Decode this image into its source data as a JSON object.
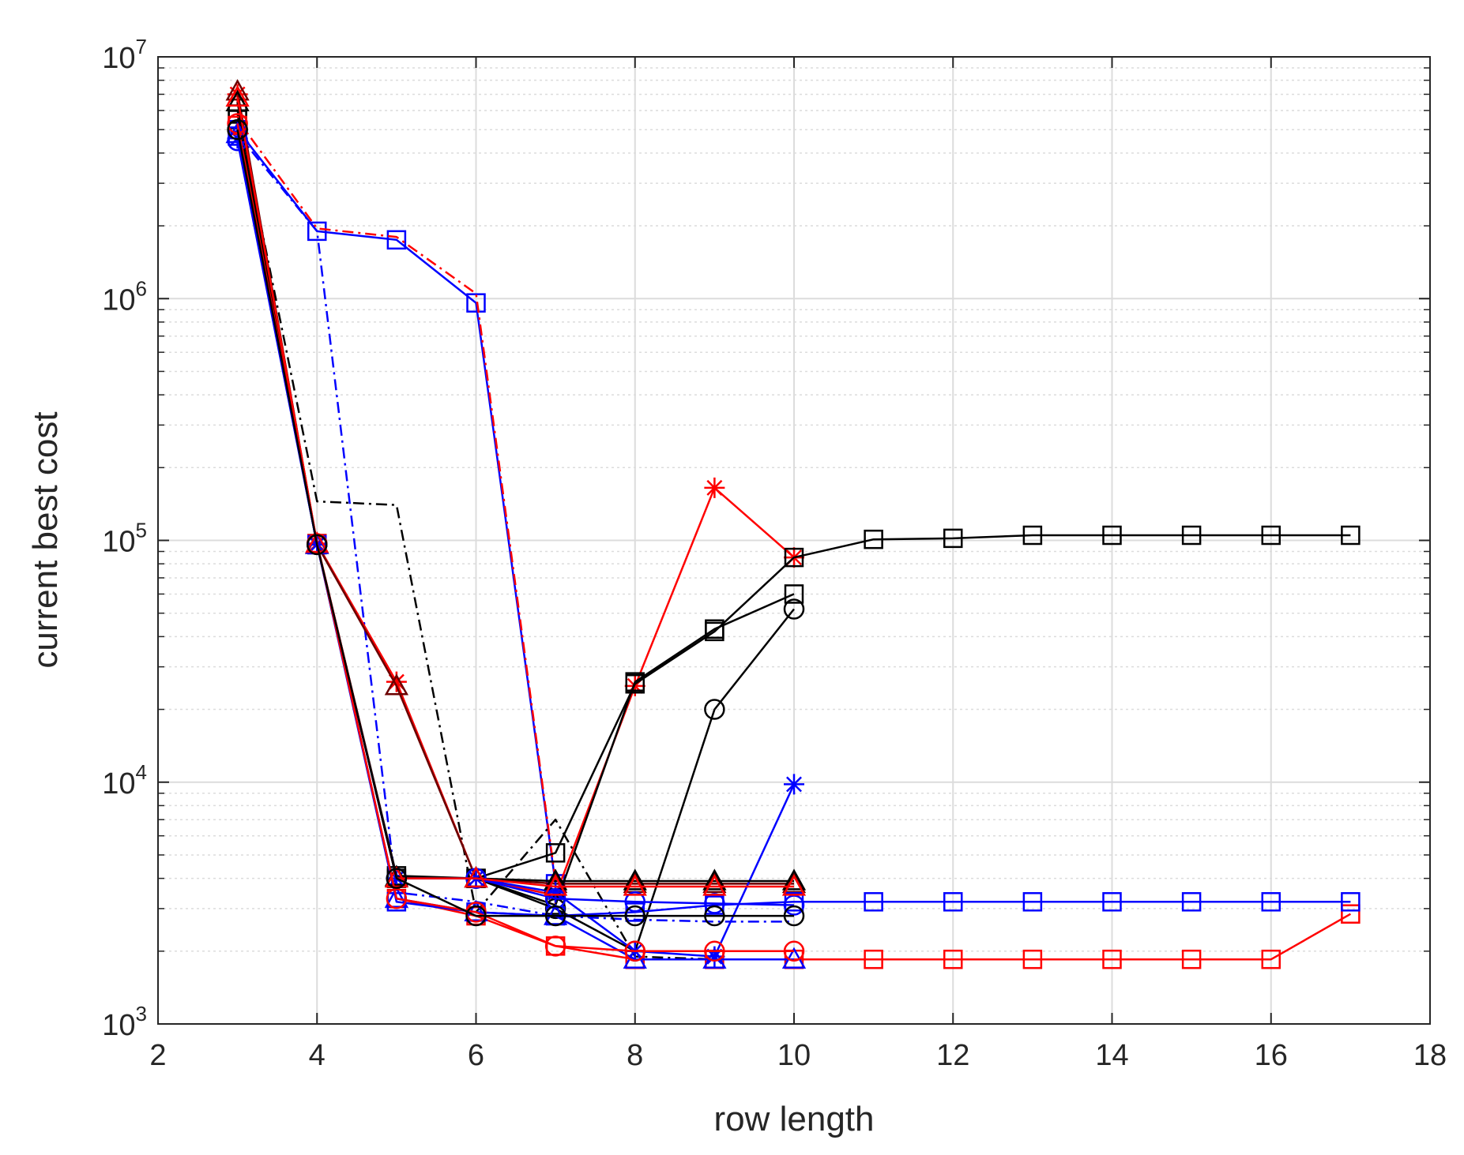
{
  "chart_data": {
    "type": "line",
    "title": "",
    "xlabel": "row length",
    "ylabel": "current best cost",
    "xlim": [
      2,
      18
    ],
    "ylim": [
      1000,
      10000000
    ],
    "yscale": "log",
    "grid": true,
    "minor_grid": true,
    "x_ticks": [
      2,
      4,
      6,
      8,
      10,
      12,
      14,
      16,
      18
    ],
    "y_ticks": [
      {
        "value": 1000,
        "base": "10",
        "exp": "3"
      },
      {
        "value": 10000,
        "base": "10",
        "exp": "4"
      },
      {
        "value": 100000,
        "base": "10",
        "exp": "5"
      },
      {
        "value": 1000000,
        "base": "10",
        "exp": "6"
      },
      {
        "value": 10000000,
        "base": "10",
        "exp": "7"
      }
    ],
    "colors": {
      "black": "#000000",
      "red": "#ff0000",
      "blue": "#0000ff",
      "darkred": "#6b0000",
      "grid": "#dcdcdc",
      "axis": "#262626"
    },
    "series": [
      {
        "name": "blue square solid (top)",
        "color": "blue",
        "dash": "solid",
        "marker": "square",
        "x": [
          3,
          4,
          5,
          6,
          7
        ],
        "y": [
          5000000,
          1900000,
          1750000,
          960000,
          3800
        ]
      },
      {
        "name": "red dash-dot (top)",
        "color": "red",
        "dash": "dashdot",
        "marker": "none",
        "x": [
          3,
          4,
          5,
          6,
          7
        ],
        "y": [
          5500000,
          1950000,
          1800000,
          1050000,
          3900
        ]
      },
      {
        "name": "blue dash-dot",
        "color": "blue",
        "dash": "dashdot",
        "marker": "none",
        "x": [
          3,
          4,
          5,
          6,
          7,
          8,
          9,
          10
        ],
        "y": [
          4800000,
          1900000,
          3500,
          3200,
          2800,
          2700,
          2650,
          2650
        ]
      },
      {
        "name": "black dash-dot",
        "color": "black",
        "dash": "dashdot",
        "marker": "none",
        "x": [
          3,
          4,
          5,
          6,
          7,
          8,
          9,
          10
        ],
        "y": [
          6000000,
          145000,
          140000,
          2900,
          7000,
          1900,
          1850,
          1850
        ]
      },
      {
        "name": "red star",
        "color": "red",
        "dash": "solid",
        "marker": "star",
        "x": [
          3,
          4,
          5,
          6,
          7,
          8,
          9,
          10
        ],
        "y": [
          7000000,
          97000,
          26000,
          4000,
          3400,
          25000,
          165000,
          85000
        ]
      },
      {
        "name": "darkred triangle",
        "color": "darkred",
        "dash": "solid",
        "marker": "triangle",
        "x": [
          3,
          4,
          5,
          6,
          7,
          8,
          9,
          10
        ],
        "y": [
          7200000,
          96000,
          25000,
          4000,
          3800,
          3800,
          3800,
          3800
        ]
      },
      {
        "name": "black square long",
        "color": "black",
        "dash": "solid",
        "marker": "square",
        "x": [
          3,
          4,
          5,
          6,
          7,
          8,
          9,
          10,
          11,
          12,
          13,
          14,
          15,
          16,
          17
        ],
        "y": [
          5800000,
          96000,
          4100,
          4000,
          5100,
          25500,
          42000,
          85000,
          101000,
          102000,
          105000,
          105000,
          105000,
          105000,
          105000
        ]
      },
      {
        "name": "black square short",
        "color": "black",
        "dash": "solid",
        "marker": "square",
        "x": [
          3,
          4,
          5,
          6,
          7,
          8,
          9,
          10
        ],
        "y": [
          5500000,
          97000,
          4000,
          4000,
          3100,
          26000,
          43000,
          60000
        ]
      },
      {
        "name": "black circle",
        "color": "black",
        "dash": "solid",
        "marker": "circle",
        "x": [
          3,
          4,
          5,
          6,
          7,
          8,
          9,
          10
        ],
        "y": [
          5000000,
          96000,
          4000,
          4000,
          3000,
          2000,
          20000,
          52000
        ]
      },
      {
        "name": "blue star",
        "color": "blue",
        "dash": "solid",
        "marker": "star",
        "x": [
          3,
          4,
          5,
          6,
          7,
          8,
          9,
          10
        ],
        "y": [
          4600000,
          96000,
          4000,
          4000,
          3500,
          2000,
          1900,
          9800
        ]
      },
      {
        "name": "red square long",
        "color": "red",
        "dash": "solid",
        "marker": "square",
        "x": [
          3,
          4,
          5,
          6,
          7,
          8,
          9,
          10,
          11,
          12,
          13,
          14,
          15,
          16,
          17
        ],
        "y": [
          5200000,
          97000,
          3300,
          2800,
          2100,
          1850,
          1850,
          1850,
          1850,
          1850,
          1850,
          1850,
          1850,
          1850,
          2850
        ]
      },
      {
        "name": "blue square long",
        "color": "blue",
        "dash": "solid",
        "marker": "square",
        "x": [
          3,
          4,
          5,
          6,
          7,
          8,
          9,
          10,
          11,
          12,
          13,
          14,
          15,
          16,
          17
        ],
        "y": [
          4700000,
          96000,
          3200,
          2900,
          2800,
          2900,
          3100,
          3200,
          3200,
          3200,
          3200,
          3200,
          3200,
          3200,
          3200
        ]
      },
      {
        "name": "black triangle",
        "color": "black",
        "dash": "solid",
        "marker": "triangle",
        "x": [
          3,
          4,
          5,
          6,
          7,
          8,
          9,
          10
        ],
        "y": [
          6500000,
          96000,
          4050,
          4000,
          3900,
          3900,
          3900,
          3900
        ]
      },
      {
        "name": "blue circle",
        "color": "blue",
        "dash": "solid",
        "marker": "circle",
        "x": [
          3,
          4,
          5,
          6,
          7,
          8,
          9,
          10
        ],
        "y": [
          4500000,
          96000,
          4000,
          4000,
          3300,
          3200,
          3150,
          3100
        ]
      },
      {
        "name": "blue triangle",
        "color": "blue",
        "dash": "solid",
        "marker": "triangle",
        "x": [
          3,
          4,
          5,
          6,
          7,
          8,
          9,
          10
        ],
        "y": [
          4800000,
          96000,
          3300,
          2900,
          2800,
          1850,
          1850,
          1850
        ]
      },
      {
        "name": "red circle",
        "color": "red",
        "dash": "solid",
        "marker": "circle",
        "x": [
          3,
          4,
          5,
          6,
          7,
          8,
          9,
          10
        ],
        "y": [
          5300000,
          97000,
          3300,
          2900,
          2100,
          2000,
          2000,
          2000
        ]
      },
      {
        "name": "red triangle",
        "color": "red",
        "dash": "solid",
        "marker": "triangle",
        "x": [
          3,
          4,
          5,
          6,
          7,
          8,
          9,
          10
        ],
        "y": [
          6800000,
          97000,
          4000,
          4000,
          3700,
          3700,
          3700,
          3700
        ]
      },
      {
        "name": "black circle low",
        "color": "black",
        "dash": "solid",
        "marker": "circle",
        "x": [
          3,
          4,
          5,
          6,
          7,
          8,
          9,
          10
        ],
        "y": [
          5000000,
          96000,
          4000,
          2800,
          2800,
          2800,
          2800,
          2800
        ]
      }
    ]
  }
}
